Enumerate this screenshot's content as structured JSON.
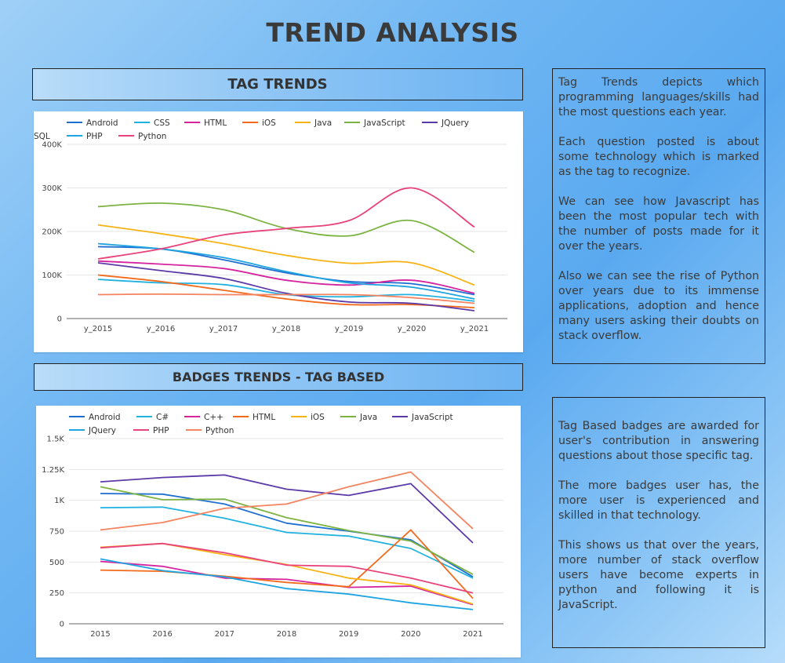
{
  "page": {
    "title": "TREND ANALYSIS"
  },
  "sections": {
    "tag_trends": {
      "header": "TAG TRENDS",
      "description": [
        "Tag Trends depicts which programming languages/skills had the most questions each year.",
        "Each question posted is about some technology which is marked as the tag to recognize.",
        "We can see how Javascript has been the most popular tech with the number of posts made for it over the years.",
        "Also we can see the rise of Python over years due to its immense applications, adoption and hence many users asking their doubts on stack overflow."
      ]
    },
    "badges_trends": {
      "header": "BADGES TRENDS - TAG BASED",
      "description": [
        "Tag Based badges are awarded for user's contribution in answering questions about those specific tag.",
        "The more badges user has, the more user is experienced and skilled in that technology.",
        "This shows us that over the years, more number of stack overflow users have become experts in python and following it is JavaScript."
      ]
    }
  },
  "chart_data": [
    {
      "type": "line",
      "smooth": true,
      "categories": [
        "y_2015",
        "y_2016",
        "y_2017",
        "y_2018",
        "y_2019",
        "y_2020",
        "y_2021"
      ],
      "ylim": [
        0,
        400000
      ],
      "yticks": [
        0,
        100000,
        200000,
        300000,
        400000
      ],
      "ytick_labels": [
        "0",
        "100K",
        "200K",
        "300K",
        "400K"
      ],
      "grid": true,
      "legend": "top",
      "series": [
        {
          "name": "Android",
          "color": "#1f6fd0",
          "values": [
            165000,
            160000,
            135000,
            105000,
            85000,
            80000,
            55000
          ]
        },
        {
          "name": "CSS",
          "color": "#22b2e0",
          "values": [
            90000,
            82000,
            78000,
            55000,
            50000,
            55000,
            40000
          ]
        },
        {
          "name": "HTML",
          "color": "#d6249f",
          "values": [
            132000,
            125000,
            115000,
            88000,
            77000,
            88000,
            58000
          ]
        },
        {
          "name": "iOS",
          "color": "#f26b1d",
          "values": [
            100000,
            85000,
            65000,
            45000,
            32000,
            32000,
            25000
          ]
        },
        {
          "name": "Java",
          "color": "#f7b316",
          "values": [
            215000,
            195000,
            172000,
            145000,
            127000,
            128000,
            77000
          ]
        },
        {
          "name": "JavaScript",
          "color": "#7cb342",
          "values": [
            257000,
            265000,
            250000,
            207000,
            190000,
            225000,
            152000
          ]
        },
        {
          "name": "JQuery",
          "color": "#5b3aa8",
          "values": [
            128000,
            110000,
            92000,
            58000,
            38000,
            35000,
            18000
          ]
        },
        {
          "name": "PHP",
          "color": "#1ea4e0",
          "values": [
            172000,
            160000,
            140000,
            108000,
            82000,
            72000,
            45000
          ]
        },
        {
          "name": "Python",
          "color": "#e8437a",
          "values": [
            137000,
            160000,
            192000,
            207000,
            225000,
            300000,
            210000
          ]
        },
        {
          "name": "SQL",
          "color": "#f4845f",
          "values": [
            55000,
            56000,
            55000,
            55000,
            55000,
            48000,
            35000
          ]
        }
      ]
    },
    {
      "type": "line",
      "smooth": false,
      "categories": [
        "2015",
        "2016",
        "2017",
        "2018",
        "2019",
        "2020",
        "2021"
      ],
      "ylim": [
        0,
        1500
      ],
      "yticks": [
        0,
        250,
        500,
        750,
        1000,
        1250,
        1500
      ],
      "ytick_labels": [
        "0",
        "250",
        "500",
        "750",
        "1K",
        "1.25K",
        "1.5K"
      ],
      "grid": true,
      "legend": "top",
      "series": [
        {
          "name": "Android",
          "color": "#1f6fd0",
          "values": [
            1055,
            1050,
            970,
            815,
            750,
            680,
            380
          ]
        },
        {
          "name": "C#",
          "color": "#22b2e0",
          "values": [
            940,
            945,
            855,
            740,
            710,
            610,
            370
          ]
        },
        {
          "name": "C++",
          "color": "#d6249f",
          "values": [
            505,
            465,
            370,
            360,
            295,
            305,
            155
          ]
        },
        {
          "name": "HTML",
          "color": "#f26b1d",
          "values": [
            435,
            425,
            385,
            335,
            300,
            760,
            205
          ]
        },
        {
          "name": "iOS",
          "color": "#f7b316",
          "values": [
            620,
            650,
            560,
            480,
            370,
            315,
            160
          ]
        },
        {
          "name": "Java",
          "color": "#7cb342",
          "values": [
            1110,
            1005,
            1010,
            860,
            755,
            670,
            400
          ]
        },
        {
          "name": "JavaScript",
          "color": "#5b3aa8",
          "values": [
            1150,
            1185,
            1205,
            1090,
            1040,
            1135,
            655
          ]
        },
        {
          "name": "JQuery",
          "color": "#1ea4e0",
          "values": [
            525,
            430,
            380,
            285,
            240,
            170,
            115
          ]
        },
        {
          "name": "PHP",
          "color": "#e8437a",
          "values": [
            615,
            650,
            575,
            475,
            465,
            370,
            250
          ]
        },
        {
          "name": "Python",
          "color": "#f4845f",
          "values": [
            760,
            820,
            935,
            970,
            1110,
            1230,
            770
          ]
        }
      ]
    }
  ]
}
